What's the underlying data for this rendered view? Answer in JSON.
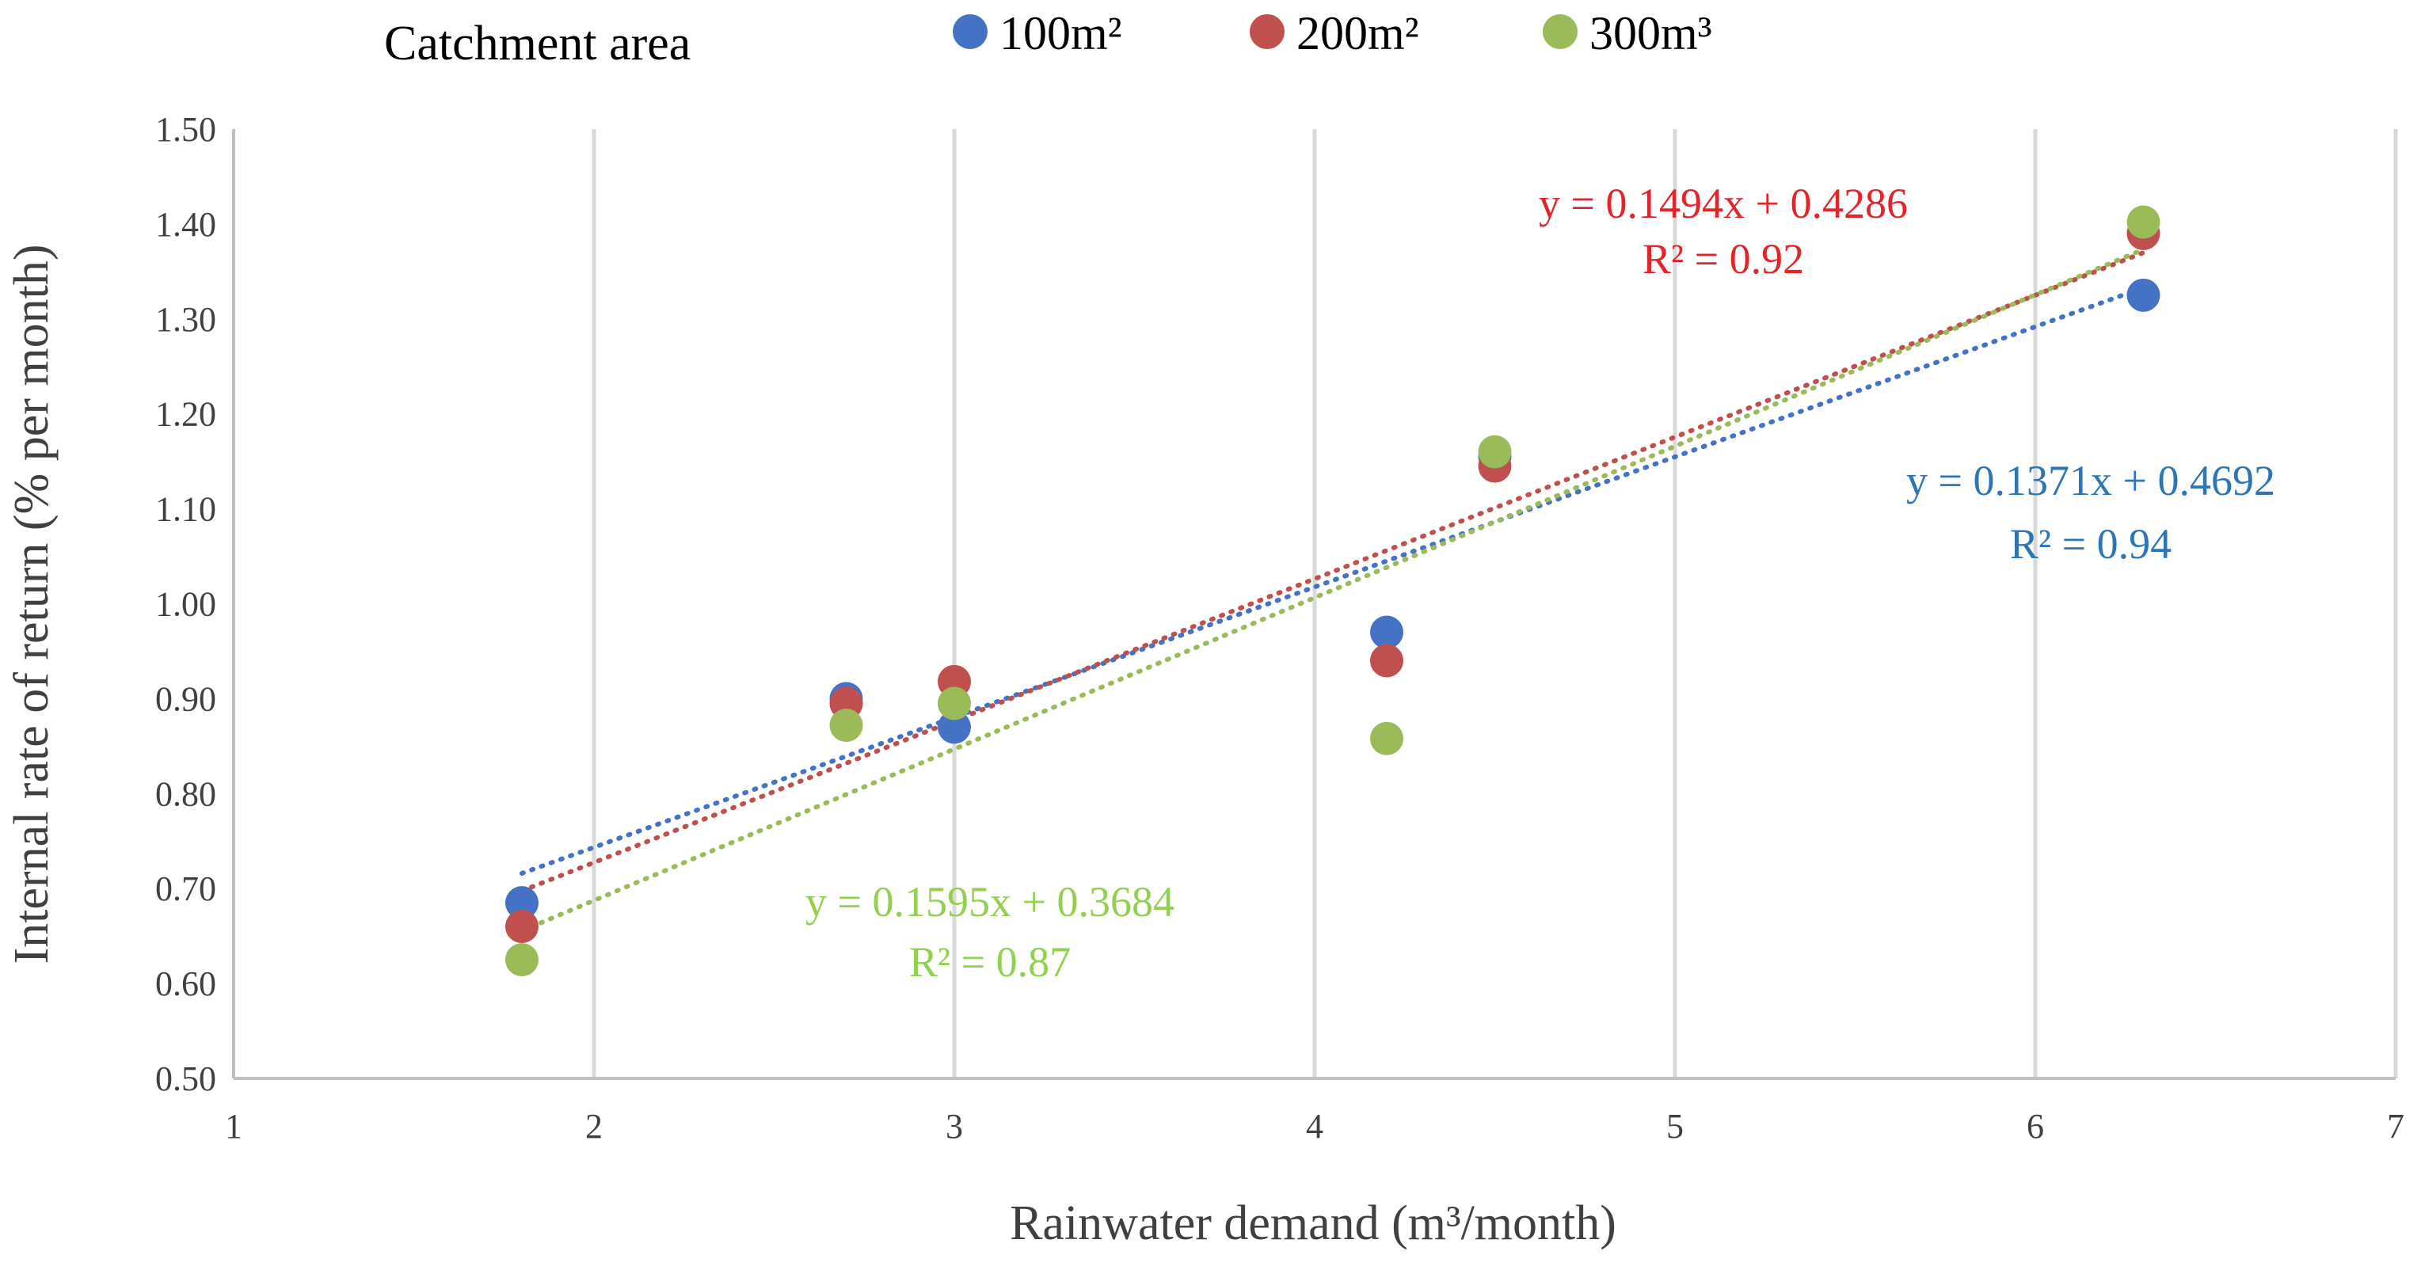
{
  "chart_data": {
    "type": "scatter",
    "title": "",
    "xlabel": "Rainwater demand (m³/month)",
    "ylabel": "Internal rate of return (% per month)",
    "xlim": [
      1,
      7
    ],
    "ylim": [
      0.5,
      1.5
    ],
    "x_ticks": [
      1,
      2,
      3,
      4,
      5,
      6,
      7
    ],
    "y_ticks": [
      0.5,
      0.6,
      0.7,
      0.8,
      0.9,
      1.0,
      1.1,
      1.2,
      1.3,
      1.4,
      1.5
    ],
    "x_tick_labels": [
      "1",
      "2",
      "3",
      "4",
      "5",
      "6",
      "7"
    ],
    "y_tick_labels": [
      "0.50",
      "0.60",
      "0.70",
      "0.80",
      "0.90",
      "1.00",
      "1.10",
      "1.20",
      "1.30",
      "1.40",
      "1.50"
    ],
    "grid": "vertical",
    "legend": {
      "title": "Catchment area",
      "placement": "top",
      "entries": [
        "100m²",
        "200m²",
        "300m³"
      ]
    },
    "series": [
      {
        "name": "100m²",
        "color": "#4472c4",
        "points": [
          [
            1.8,
            0.685
          ],
          [
            2.7,
            0.9
          ],
          [
            3.0,
            0.87
          ],
          [
            4.2,
            0.97
          ],
          [
            4.5,
            1.155
          ],
          [
            6.3,
            1.325
          ]
        ],
        "trendline": {
          "slope": 0.1371,
          "intercept": 0.4692,
          "x_range": [
            1.8,
            6.3
          ]
        },
        "equation": "y = 0.1371x + 0.4692",
        "r2": "R² = 0.94"
      },
      {
        "name": "200m²",
        "color": "#c0504d",
        "points": [
          [
            1.8,
            0.66
          ],
          [
            2.7,
            0.895
          ],
          [
            3.0,
            0.918
          ],
          [
            4.2,
            0.94
          ],
          [
            4.5,
            1.145
          ],
          [
            6.3,
            1.39
          ]
        ],
        "trendline": {
          "slope": 0.1494,
          "intercept": 0.4286,
          "x_range": [
            1.8,
            6.3
          ]
        },
        "equation": "y = 0.1494x + 0.4286",
        "r2": "R² = 0.92"
      },
      {
        "name": "300m³",
        "color": "#9bbb59",
        "points": [
          [
            1.8,
            0.625
          ],
          [
            2.7,
            0.872
          ],
          [
            3.0,
            0.895
          ],
          [
            4.2,
            0.858
          ],
          [
            4.5,
            1.16
          ],
          [
            6.3,
            1.402
          ]
        ],
        "trendline": {
          "slope": 0.1595,
          "intercept": 0.3684,
          "x_range": [
            1.8,
            6.3
          ]
        },
        "equation": "y = 0.1595x + 0.3684",
        "r2": "R² = 0.87"
      }
    ],
    "annotation_colors": {
      "100m²": "#2e75b6",
      "200m²": "#e3242b",
      "300m³": "#92d050"
    }
  }
}
